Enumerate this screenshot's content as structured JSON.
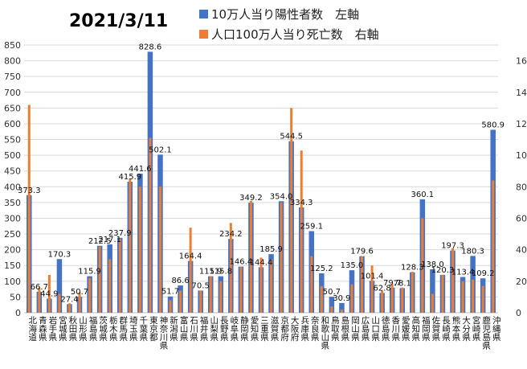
{
  "chart_data": {
    "type": "bar",
    "title": "2021/3/11",
    "legend_position": "top-right",
    "grid": true,
    "y_left": {
      "min": 0,
      "max": 850,
      "step": 50
    },
    "y_right": {
      "min": 0,
      "max": 170,
      "step": 20
    },
    "colors": {
      "cases": "#4472C4",
      "deaths": "#ED7D31"
    },
    "categories": [
      "北海道",
      "青森県",
      "岩手県",
      "宮城県",
      "秋田県",
      "山形県",
      "福島県",
      "茨城県",
      "栃木県",
      "群馬県",
      "埼玉県",
      "千葉県",
      "東京都",
      "神奈川県",
      "新潟県",
      "富山県",
      "石川県",
      "福井県",
      "山梨県",
      "長野県",
      "岐阜県",
      "静岡県",
      "愛知県",
      "三重県",
      "滋賀県",
      "京都府",
      "大阪府",
      "兵庫県",
      "奈良県",
      "和歌山県",
      "鳥取県",
      "島根県",
      "岡山県",
      "広島県",
      "山口県",
      "徳島県",
      "香川県",
      "愛媛県",
      "高知県",
      "福岡県",
      "佐賀県",
      "長崎県",
      "熊本県",
      "大分県",
      "宮崎県",
      "鹿児島県",
      "沖縄県"
    ],
    "series": [
      {
        "name": "10万人当り陽性者数　左軸",
        "axis": "left",
        "labels": [
          "373.3",
          "66.7",
          "44.9",
          "170.3",
          "27.4",
          "50.7",
          "115.9",
          "212.5",
          "217.1",
          "237.9",
          "415.9",
          "441.6",
          "828.6",
          "502.1",
          "51.7",
          "86.6",
          "164.4",
          "70.5",
          "115.9",
          "115.8",
          "234.2",
          "146.4",
          "349.2",
          "144.4",
          "185.9",
          "354.0",
          "544.5",
          "334.3",
          "259.1",
          "125.2",
          "50.7",
          "30.9",
          "135.0",
          "179.6",
          "101.4",
          "62.8",
          "79.7",
          "78.1",
          "128.3",
          "360.1",
          "138.0",
          "120.3",
          "197.3",
          "113.4",
          "180.3",
          "109.2",
          "580.9"
        ],
        "values": [
          373.3,
          66.7,
          44.9,
          170.3,
          27.4,
          50.7,
          115.9,
          212.5,
          217.1,
          237.9,
          415.9,
          441.6,
          828.6,
          502.1,
          51.7,
          86.6,
          164.4,
          70.5,
          115.9,
          115.8,
          234.2,
          146.4,
          349.2,
          144.4,
          185.9,
          354.0,
          544.5,
          334.3,
          259.1,
          125.2,
          50.7,
          30.9,
          135.0,
          179.6,
          101.4,
          62.8,
          79.7,
          78.1,
          128.3,
          360.1,
          138.0,
          120.3,
          197.3,
          113.4,
          180.3,
          109.2,
          580.9
        ]
      },
      {
        "name": "人口100万人当り死亡数　右軸",
        "axis": "right",
        "values": [
          132,
          16,
          24,
          12,
          6,
          13,
          22,
          42,
          34,
          47,
          85,
          80,
          111,
          80,
          8,
          14,
          54,
          14,
          23,
          20,
          57,
          29,
          71,
          35,
          34,
          70,
          130,
          103,
          36,
          17,
          4,
          2,
          18,
          36,
          30,
          14,
          18,
          16,
          26,
          60,
          12,
          24,
          41,
          20,
          21,
          17,
          84
        ]
      }
    ]
  }
}
